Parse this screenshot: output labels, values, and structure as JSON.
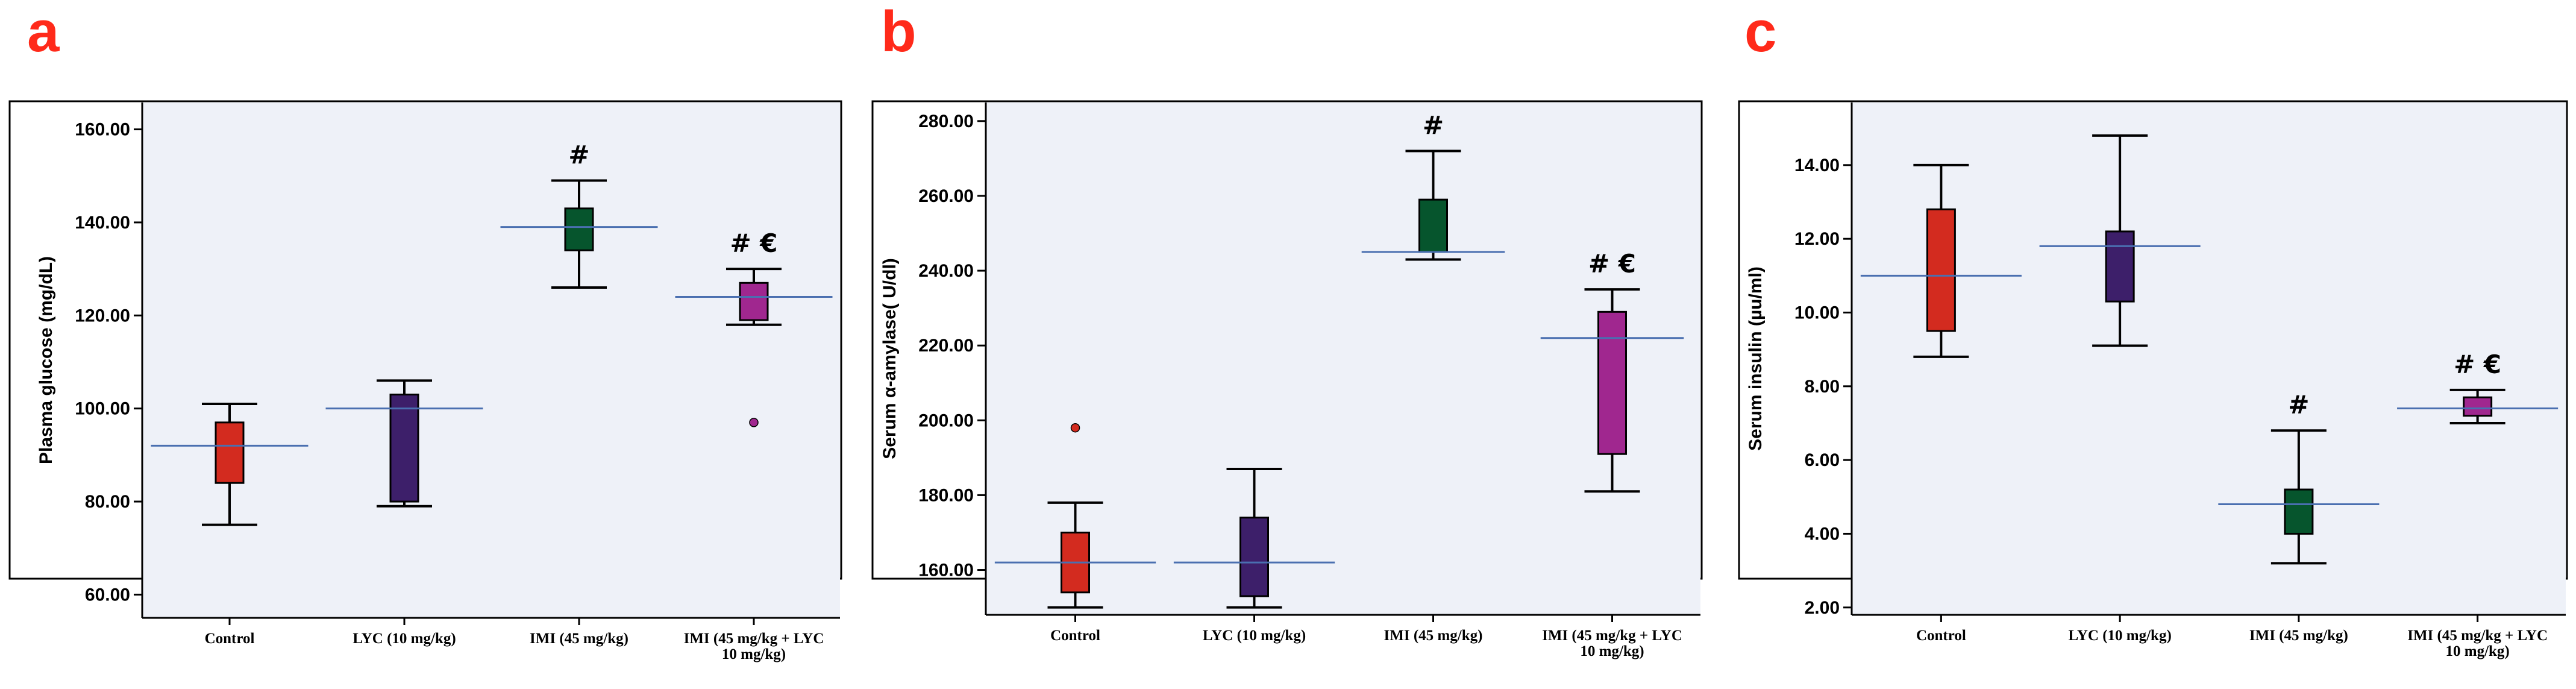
{
  "chart_data": [
    {
      "panel": "a",
      "type": "box",
      "ylabel": "Plasma glucose (mg/dL)",
      "ylim": [
        55,
        165
      ],
      "yticks": [
        60,
        80,
        100,
        120,
        140,
        160
      ],
      "ytick_labels": [
        "60.00",
        "80.00",
        "100.00",
        "120.00",
        "140.00",
        "160.00"
      ],
      "categories": [
        "Control",
        "LYC (10 mg/kg)",
        "IMI (45 mg/kg)",
        "IMI (45 mg/kg + LYC|10 mg/kg)"
      ],
      "mean_line_xspan": [
        [
          0.55,
          1.45
        ],
        [
          1.55,
          2.45
        ],
        [
          2.55,
          3.45
        ],
        [
          3.55,
          4.45
        ]
      ],
      "boxes": [
        {
          "whisker_low": 75,
          "q1": 84,
          "q3": 97,
          "whisker_high": 101,
          "mean": 92,
          "color": "#d32b1f",
          "outliers": [],
          "annotation": ""
        },
        {
          "whisker_low": 79,
          "q1": 80,
          "q3": 103,
          "whisker_high": 106,
          "mean": 100,
          "color": "#3d1f6a",
          "outliers": [],
          "annotation": ""
        },
        {
          "whisker_low": 126,
          "q1": 134,
          "q3": 143,
          "whisker_high": 149,
          "mean": 139,
          "color": "#06552d",
          "outliers": [],
          "annotation": "#"
        },
        {
          "whisker_low": 118,
          "q1": 119,
          "q3": 127,
          "whisker_high": 130,
          "mean": 124,
          "color": "#a0278f",
          "outliers": [
            97
          ],
          "annotation": "# €"
        }
      ]
    },
    {
      "panel": "b",
      "type": "box",
      "ylabel": "Serum α-amylase( U/dl)",
      "ylim": [
        148,
        284
      ],
      "yticks": [
        160,
        180,
        200,
        220,
        240,
        260,
        280
      ],
      "ytick_labels": [
        "160.00",
        "180.00",
        "200.00",
        "220.00",
        "240.00",
        "260.00",
        "280.00"
      ],
      "categories": [
        "Control",
        "LYC (10 mg/kg)",
        "IMI (45 mg/kg)",
        "IMI (45 mg/kg + LYC|10 mg/kg)"
      ],
      "mean_line_xspan": [
        [
          0.55,
          1.45
        ],
        [
          1.55,
          2.45
        ],
        [
          2.6,
          3.4
        ],
        [
          3.6,
          4.4
        ]
      ],
      "boxes": [
        {
          "whisker_low": 150,
          "q1": 154,
          "q3": 170,
          "whisker_high": 178,
          "mean": 162,
          "color": "#d32b1f",
          "outliers": [
            198
          ],
          "annotation": ""
        },
        {
          "whisker_low": 150,
          "q1": 153,
          "q3": 174,
          "whisker_high": 187,
          "mean": 162,
          "color": "#3d1f6a",
          "outliers": [],
          "annotation": ""
        },
        {
          "whisker_low": 243,
          "q1": 245,
          "q3": 259,
          "whisker_high": 272,
          "mean": 245,
          "color": "#06552d",
          "outliers": [],
          "annotation": "#"
        },
        {
          "whisker_low": 181,
          "q1": 191,
          "q3": 229,
          "whisker_high": 235,
          "mean": 222,
          "color": "#a0278f",
          "outliers": [],
          "annotation": "# €"
        }
      ]
    },
    {
      "panel": "c",
      "type": "box",
      "ylabel": "Serum insulin (µu/ml)",
      "ylim": [
        1.8,
        15.6
      ],
      "yticks": [
        2,
        4,
        6,
        8,
        10,
        12,
        14
      ],
      "ytick_labels": [
        "2.00",
        "4.00",
        "6.00",
        "8.00",
        "10.00",
        "12.00",
        "14.00"
      ],
      "categories": [
        "Control",
        "LYC (10 mg/kg)",
        "IMI (45 mg/kg)",
        "IMI (45 mg/kg + LYC|10 mg/kg)"
      ],
      "mean_line_xspan": [
        [
          0.55,
          1.45
        ],
        [
          1.55,
          2.45
        ],
        [
          2.55,
          3.45
        ],
        [
          3.55,
          4.45
        ]
      ],
      "boxes": [
        {
          "whisker_low": 8.8,
          "q1": 9.5,
          "q3": 12.8,
          "whisker_high": 14.0,
          "mean": 11.0,
          "color": "#d32b1f",
          "outliers": [],
          "annotation": ""
        },
        {
          "whisker_low": 9.1,
          "q1": 10.3,
          "q3": 12.2,
          "whisker_high": 14.8,
          "mean": 11.8,
          "color": "#3d1f6a",
          "outliers": [],
          "annotation": ""
        },
        {
          "whisker_low": 3.2,
          "q1": 4.0,
          "q3": 5.2,
          "whisker_high": 6.8,
          "mean": 4.8,
          "color": "#06552d",
          "outliers": [],
          "annotation": "#"
        },
        {
          "whisker_low": 7.0,
          "q1": 7.2,
          "q3": 7.7,
          "whisker_high": 7.9,
          "mean": 7.4,
          "color": "#a0278f",
          "outliers": [],
          "annotation": "# €"
        }
      ]
    }
  ]
}
